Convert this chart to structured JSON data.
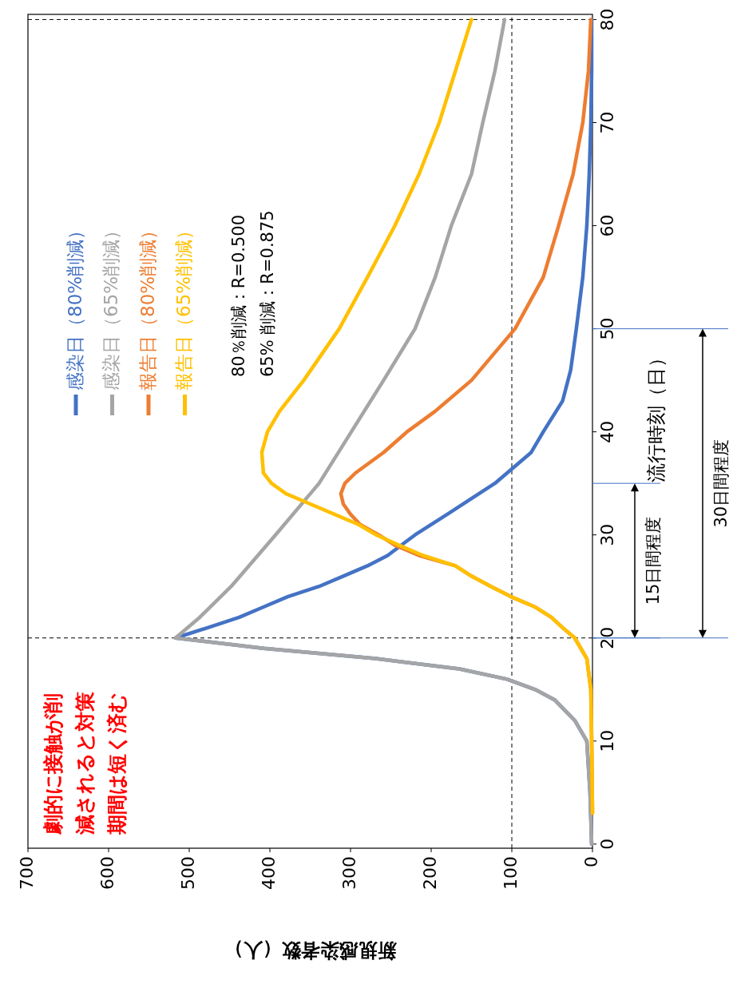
{
  "chart_data": {
    "type": "line",
    "ylabel": "流行時刻（日）",
    "xlabel": "新規感染者数（人）",
    "ylim": [
      -0.4,
      80.5
    ],
    "yticks": [
      0,
      10,
      20,
      30,
      40,
      50,
      60,
      70,
      80
    ],
    "xlim": [
      700,
      0
    ],
    "xticks": [
      0,
      100,
      200,
      300,
      400,
      500,
      600,
      700
    ],
    "grid": false,
    "legend": "top",
    "marker": "none",
    "line_style": "solid",
    "series": [
      {
        "name": "感染日（80%削減）",
        "color": "#4472c4",
        "values": [
          0,
          5,
          10,
          12,
          14,
          15,
          16,
          17,
          18,
          19,
          20,
          21,
          22,
          23,
          24,
          25,
          26,
          27,
          28,
          30,
          32,
          35,
          38,
          40,
          43,
          46,
          50,
          55,
          60,
          65,
          70,
          75,
          80
        ],
        "x": [
          1,
          3,
          7,
          22,
          47,
          71,
          106,
          165,
          269,
          408,
          517,
          477,
          438,
          408,
          378,
          339,
          309,
          279,
          254,
          220,
          180,
          121,
          76,
          61,
          37,
          27,
          20,
          12,
          7,
          4,
          2,
          1,
          1
        ]
      },
      {
        "name": "感染日（65%削減）",
        "color": "#a5a5a5",
        "values": [
          0,
          5,
          10,
          12,
          14,
          15,
          16,
          17,
          18,
          19,
          20,
          22,
          25,
          30,
          35,
          40,
          45,
          50,
          55,
          60,
          65,
          70,
          75,
          80
        ],
        "x": [
          1,
          3,
          7,
          22,
          47,
          71,
          106,
          165,
          269,
          408,
          517,
          487,
          448,
          393,
          339,
          299,
          259,
          220,
          195,
          175,
          150,
          136,
          121,
          109
        ]
      },
      {
        "name": "報告日（80%削減）",
        "color": "#ed7d31",
        "values": [
          3,
          10,
          15,
          18,
          20,
          21,
          22,
          23,
          24,
          25,
          26,
          27,
          28,
          29,
          30,
          31,
          32,
          33,
          34,
          35,
          36,
          38,
          40,
          42,
          45,
          50,
          55,
          60,
          65,
          70,
          75,
          80
        ],
        "x": [
          0,
          1,
          2,
          7,
          22,
          37,
          51,
          71,
          101,
          126,
          150,
          170,
          215,
          245,
          265,
          288,
          300,
          309,
          312,
          307,
          294,
          259,
          230,
          195,
          150,
          96,
          61,
          42,
          24,
          12,
          5,
          2
        ]
      },
      {
        "name": "報告日（65%削減）",
        "color": "#ffc000",
        "values": [
          3,
          10,
          15,
          18,
          20,
          21,
          22,
          23,
          24,
          25,
          26,
          27,
          28,
          29,
          30,
          31,
          32,
          33,
          34,
          35,
          36,
          38,
          40,
          42,
          45,
          50,
          55,
          60,
          65,
          70,
          75,
          80
        ],
        "x": [
          0,
          1,
          2,
          7,
          22,
          37,
          51,
          71,
          101,
          126,
          150,
          170,
          210,
          240,
          268,
          290,
          320,
          350,
          380,
          398,
          408,
          410,
          403,
          388,
          358,
          314,
          279,
          245,
          215,
          190,
          170,
          150
        ]
      }
    ],
    "ref_lines": [
      {
        "axis": "y",
        "value": 20,
        "label": null,
        "color": "#000000",
        "line_style": "dashed"
      },
      {
        "axis": "y",
        "value": 80,
        "label": null,
        "color": "#000000",
        "line_style": "dashed"
      },
      {
        "axis": "x",
        "value": 100,
        "label": null,
        "color": "#000000",
        "line_style": "dashed"
      }
    ],
    "annotations": [
      "80％削減：R=0.500",
      "65% 削減：R=0.875",
      "劇的に接触が削減されると対策期間は短く済む",
      "15日間程度",
      "30日間程度"
    ]
  }
}
